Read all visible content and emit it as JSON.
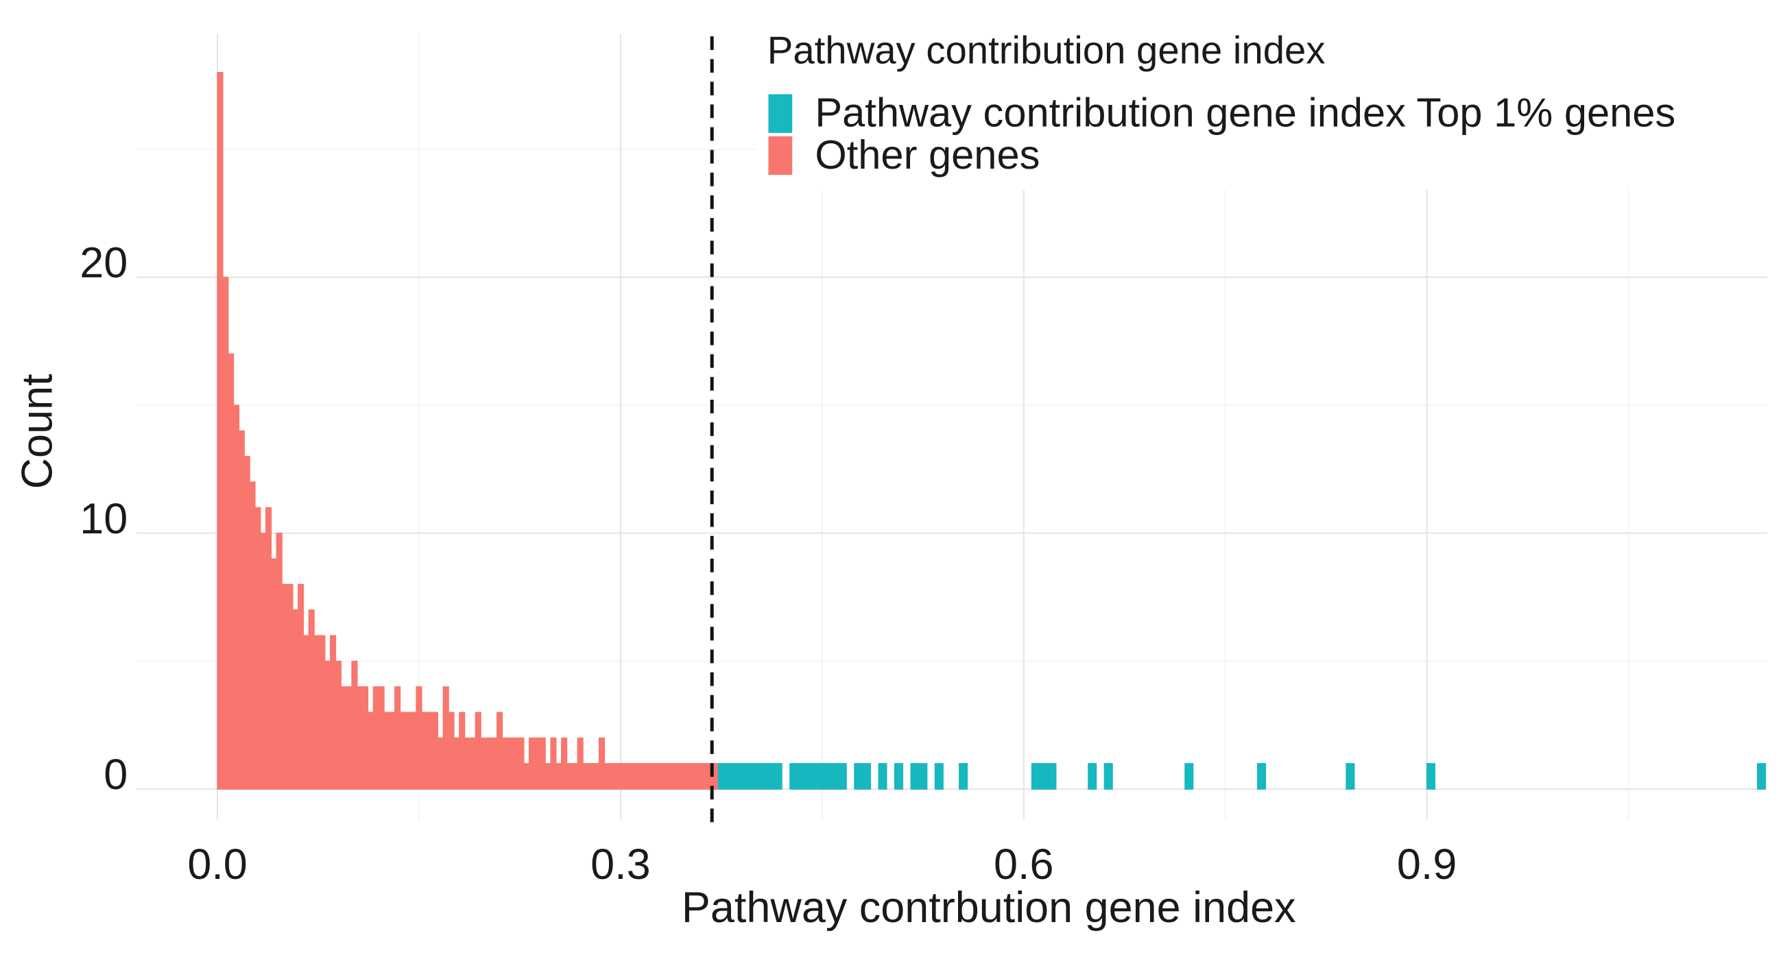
{
  "chart_data": {
    "type": "histogram",
    "x_label": "Pathway contrbution gene index",
    "y_label": "Count",
    "legend_title": "Pathway contribution gene index",
    "legend_position": "top-right",
    "grid": true,
    "xlim": [
      -0.06,
      1.153
    ],
    "ylim": [
      -1.2,
      29.5
    ],
    "xticks": [
      {
        "value": 0,
        "label": "0.0"
      },
      0.3,
      0.6,
      0.9
    ],
    "yticks": [
      0,
      10,
      20
    ],
    "xminorticks": [
      0.15,
      0.45,
      0.75,
      1.05
    ],
    "yminorticks": [
      5,
      15,
      25
    ],
    "vline": 0.368,
    "series": [
      {
        "name": "Pathway contribution gene index Top 1% genes",
        "color": "#17b8bf",
        "bins": [
          0.372,
          0.378,
          0.384,
          0.39,
          0.396,
          0.402,
          0.408,
          0.414,
          0.42,
          0.426,
          0.432,
          0.438,
          0.444,
          0.45,
          0.456,
          0.462,
          0.468,
          0.474,
          0.48,
          0.486,
          0.492,
          0.498,
          0.504,
          0.51,
          0.516,
          0.522,
          0.528,
          0.534,
          0.54,
          0.546,
          0.552,
          0.558,
          0.564,
          0.57,
          0.576,
          0.582,
          0.588,
          0.594,
          0.6,
          0.606,
          0.612,
          0.618,
          0.624,
          0.63,
          0.636,
          0.642,
          0.648,
          0.654,
          0.66,
          0.666,
          0.672,
          0.678,
          0.684,
          0.69,
          0.696,
          0.702,
          0.708,
          0.714,
          0.72,
          0.726,
          0.732,
          0.738,
          0.744,
          0.75,
          0.756,
          0.762,
          0.768,
          0.774,
          0.78,
          0.786,
          0.792,
          0.798,
          0.804,
          0.81,
          0.816,
          0.822,
          0.828,
          0.834,
          0.84,
          0.846,
          0.852,
          0.858,
          0.864,
          0.87,
          0.876,
          0.882,
          0.888,
          0.894,
          0.9,
          0.906,
          0.912,
          0.918,
          0.924,
          0.93,
          0.936,
          0.942,
          0.948,
          0.954,
          0.96,
          0.966,
          0.972,
          0.978,
          0.984,
          0.99,
          0.996,
          1.002,
          1.008,
          1.014,
          1.02,
          1.026,
          1.032,
          1.038,
          1.044,
          1.05,
          1.056,
          1.062,
          1.068,
          1.074,
          1.08,
          1.086,
          1.092,
          1.098,
          1.104,
          1.11,
          1.116,
          1.122,
          1.128,
          1.134,
          1.14,
          1.146,
          1.152
        ],
        "values": [
          1,
          1,
          1,
          1,
          1,
          1,
          1,
          1,
          0,
          1,
          1,
          1,
          1,
          1,
          1,
          1,
          0,
          1,
          1,
          0,
          1,
          0,
          1,
          0,
          1,
          1,
          0,
          1,
          0,
          0,
          1,
          0,
          0,
          0,
          0,
          0,
          0,
          0,
          0,
          1,
          1,
          1,
          0,
          0,
          0,
          0,
          1,
          0,
          1,
          0,
          0,
          0,
          0,
          0,
          0,
          0,
          0,
          0,
          1,
          0,
          0,
          0,
          0,
          0,
          0,
          0,
          0,
          1,
          0,
          0,
          0,
          0,
          0,
          0,
          0,
          0,
          0,
          0,
          1,
          0,
          0,
          0,
          0,
          0,
          0,
          0,
          0,
          0,
          1,
          0,
          0,
          0,
          0,
          0,
          0,
          0,
          0,
          0,
          0,
          0,
          0,
          0,
          0,
          0,
          0,
          0,
          0,
          0,
          0,
          0,
          0,
          0,
          0,
          0,
          0,
          0,
          0,
          0,
          0,
          0,
          0,
          0,
          0,
          0,
          0,
          0,
          0,
          0,
          0,
          1
        ]
      },
      {
        "name": "Other genes",
        "color": "#f8766d",
        "bins": [
          0,
          0.004,
          0.008,
          0.012,
          0.016,
          0.02,
          0.024,
          0.028,
          0.032,
          0.036,
          0.04,
          0.044,
          0.048,
          0.052,
          0.056,
          0.06,
          0.064,
          0.068,
          0.072,
          0.076,
          0.08,
          0.084,
          0.088,
          0.092,
          0.096,
          0.1,
          0.104,
          0.108,
          0.112,
          0.116,
          0.12,
          0.124,
          0.128,
          0.132,
          0.136,
          0.14,
          0.144,
          0.148,
          0.152,
          0.156,
          0.16,
          0.164,
          0.168,
          0.172,
          0.176,
          0.18,
          0.184,
          0.188,
          0.192,
          0.196,
          0.2,
          0.204,
          0.208,
          0.212,
          0.216,
          0.22,
          0.224,
          0.228,
          0.232,
          0.236,
          0.24,
          0.244,
          0.248,
          0.252,
          0.256,
          0.26,
          0.264,
          0.268,
          0.272,
          0.276,
          0.28,
          0.284,
          0.288,
          0.292,
          0.296,
          0.3,
          0.304,
          0.308,
          0.312,
          0.316,
          0.32,
          0.324,
          0.328,
          0.332,
          0.336,
          0.34,
          0.344,
          0.348,
          0.352,
          0.356,
          0.36,
          0.364,
          0.368,
          0.372
        ],
        "values": [
          28,
          20,
          17,
          15,
          14,
          13,
          12,
          11,
          10,
          11,
          9,
          10,
          8,
          8,
          7,
          8,
          6,
          7,
          6,
          6,
          5,
          6,
          5,
          4,
          4,
          5,
          4,
          4,
          3,
          4,
          4,
          3,
          3,
          4,
          3,
          3,
          3,
          4,
          3,
          3,
          3,
          2,
          4,
          3,
          2,
          3,
          2,
          2,
          3,
          2,
          2,
          2,
          3,
          2,
          2,
          2,
          2,
          1,
          2,
          2,
          2,
          1,
          2,
          1,
          2,
          1,
          1,
          2,
          1,
          1,
          1,
          2,
          1,
          1,
          1,
          1,
          1,
          1,
          1,
          1,
          1,
          1,
          1,
          1,
          1,
          1,
          1,
          1,
          1,
          1,
          1,
          1,
          1
        ]
      }
    ]
  }
}
